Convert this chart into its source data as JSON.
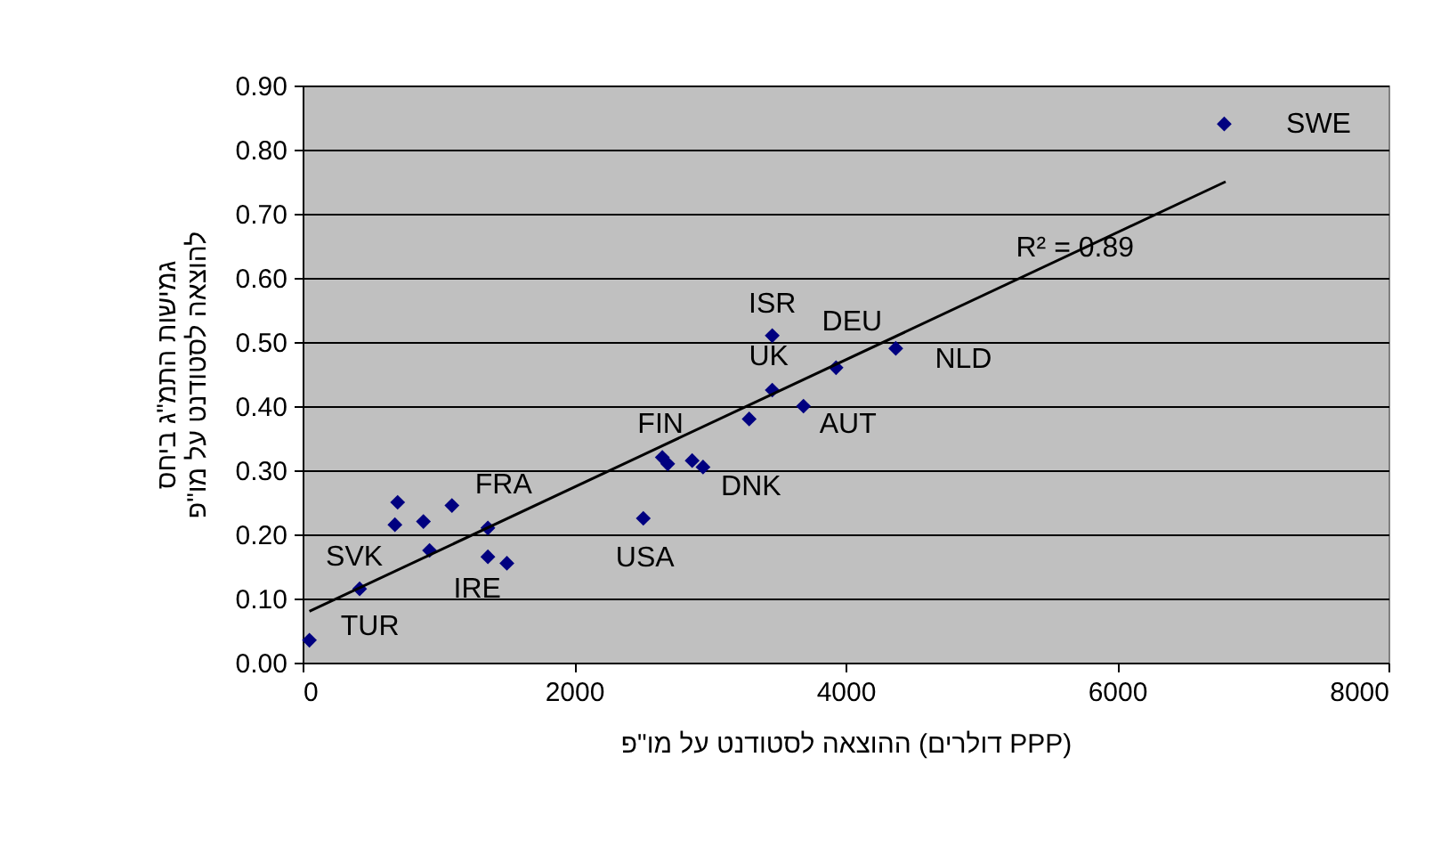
{
  "chart_data": {
    "type": "scatter",
    "xlabel": "ההוצאה לסטודנט על מו\"פ (דולרים PPP)",
    "ylabel": "גמישות התמ\"ג ביחס להוצאה לסטודנט על מו\"פ",
    "xlim": [
      0,
      8000
    ],
    "xticks": [
      0,
      2000,
      4000,
      6000,
      8000
    ],
    "ylim": [
      0,
      0.9
    ],
    "yticks": [
      {
        "value": 0,
        "label": "0.00"
      },
      {
        "value": 0.1,
        "label": "0.10"
      },
      {
        "value": 0.2,
        "label": "0.20"
      },
      {
        "value": 0.3,
        "label": "0.30"
      },
      {
        "value": 0.4,
        "label": "0.40"
      },
      {
        "value": 0.5,
        "label": "0.50"
      },
      {
        "value": 0.6,
        "label": "0.60"
      },
      {
        "value": 0.7,
        "label": "0.70"
      },
      {
        "value": 0.8,
        "label": "0.80"
      },
      {
        "value": 0.9,
        "label": "0.90"
      }
    ],
    "grid": "y",
    "marker": "diamond",
    "series": [
      {
        "color": "#000080",
        "x": [
          50,
          420,
          700,
          680,
          890,
          935,
          1100,
          1365,
          1365,
          1505,
          2510,
          2650,
          2690,
          2870,
          2950,
          3290,
          3460,
          3460,
          3690,
          3930,
          4370,
          6790
        ],
        "values": [
          0.035,
          0.115,
          0.25,
          0.215,
          0.22,
          0.175,
          0.245,
          0.21,
          0.165,
          0.155,
          0.225,
          0.32,
          0.31,
          0.315,
          0.305,
          0.38,
          0.425,
          0.51,
          0.4,
          0.46,
          0.49,
          0.84
        ]
      },
      {
        "type": "line",
        "marker": "none",
        "color": "#000000",
        "x": [
          50,
          6800
        ],
        "values": [
          0.08,
          0.75
        ]
      }
    ],
    "annotations": [
      {
        "text": "SWE",
        "x": 6790,
        "y": 0.84
      },
      {
        "text": "R² = 0.89",
        "x": 5100,
        "y": 0.581
      },
      {
        "text": "ISR",
        "x": 3460,
        "y": 0.51
      },
      {
        "text": "DEU",
        "x": 3930,
        "y": 0.46
      },
      {
        "text": "UK",
        "x": 3460,
        "y": 0.425
      },
      {
        "text": "NLD",
        "x": 4370,
        "y": 0.49
      },
      {
        "text": "AUT",
        "x": 3690,
        "y": 0.4
      },
      {
        "text": "FIN",
        "x": 2650,
        "y": 0.32
      },
      {
        "text": "DNK",
        "x": 2950,
        "y": 0.305
      },
      {
        "text": "FRA",
        "x": 1100,
        "y": 0.245
      },
      {
        "text": "USA",
        "x": 2510,
        "y": 0.225
      },
      {
        "text": "SVK",
        "x": 420,
        "y": 0.115
      },
      {
        "text": "IRE",
        "x": 1365,
        "y": 0.165
      },
      {
        "text": "TUR",
        "x": 50,
        "y": 0.035
      }
    ]
  }
}
